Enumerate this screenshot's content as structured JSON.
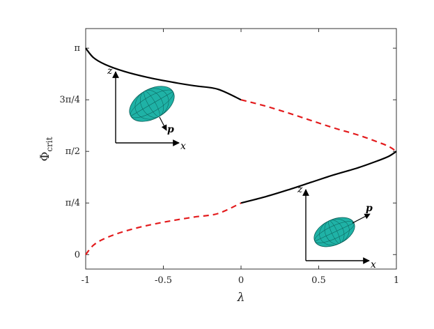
{
  "chart_data": {
    "type": "line",
    "xlabel": "λ",
    "ylabel": "Φ",
    "ylabel_sub": "crit",
    "xlim": [
      -1,
      1
    ],
    "ylim": [
      -0.22,
      3.44
    ],
    "x_ticks": [
      -1,
      -0.5,
      0,
      0.5,
      1
    ],
    "x_tick_labels": [
      "-1",
      "-0.5",
      "0",
      "0.5",
      "1"
    ],
    "y_ticks": [
      0,
      0.7854,
      1.5708,
      2.3562,
      3.1416
    ],
    "y_tick_labels": [
      "0",
      "π/4",
      "π/2",
      "3π/4",
      "π"
    ],
    "grid": false,
    "series": [
      {
        "style": "solid",
        "color": "#000000",
        "x": [
          -1.0,
          -0.95,
          -0.875,
          -0.75,
          -0.6,
          -0.45,
          -0.3,
          -0.15,
          0.0
        ],
        "y": [
          3.1416,
          2.9977,
          2.894,
          2.7862,
          2.6962,
          2.6277,
          2.5688,
          2.5177,
          2.3562
        ]
      },
      {
        "style": "dashed",
        "color": "#e31a1c",
        "x": [
          0.0,
          0.15,
          0.3,
          0.45,
          0.6,
          0.75,
          0.875,
          0.95,
          1.0
        ],
        "y": [
          2.3562,
          2.2654,
          2.1584,
          2.0423,
          1.9258,
          1.8225,
          1.7182,
          1.6474,
          1.5708
        ]
      },
      {
        "style": "solid",
        "color": "#000000",
        "x": [
          0.0,
          0.15,
          0.3,
          0.45,
          0.6,
          0.75,
          0.875,
          0.95,
          1.0
        ],
        "y": [
          0.7854,
          0.8762,
          0.9832,
          1.0993,
          1.2158,
          1.3191,
          1.4234,
          1.4942,
          1.5708
        ]
      },
      {
        "style": "dashed",
        "color": "#e31a1c",
        "x": [
          -1.0,
          -0.95,
          -0.875,
          -0.75,
          -0.6,
          -0.45,
          -0.3,
          -0.15,
          0.0
        ],
        "y": [
          0.0,
          0.1439,
          0.2476,
          0.3554,
          0.4454,
          0.5139,
          0.5728,
          0.6239,
          0.7854
        ]
      }
    ],
    "insets": [
      {
        "axis_labels": [
          "z",
          "x"
        ],
        "vector_label": "p"
      },
      {
        "axis_labels": [
          "z",
          "x"
        ],
        "vector_label": "p"
      }
    ]
  },
  "colors": {
    "ellipsoid_fill": "#1fb2a6",
    "ellipsoid_mesh": "#0b5d57",
    "dashed": "#e31a1c",
    "solid": "#000000"
  }
}
